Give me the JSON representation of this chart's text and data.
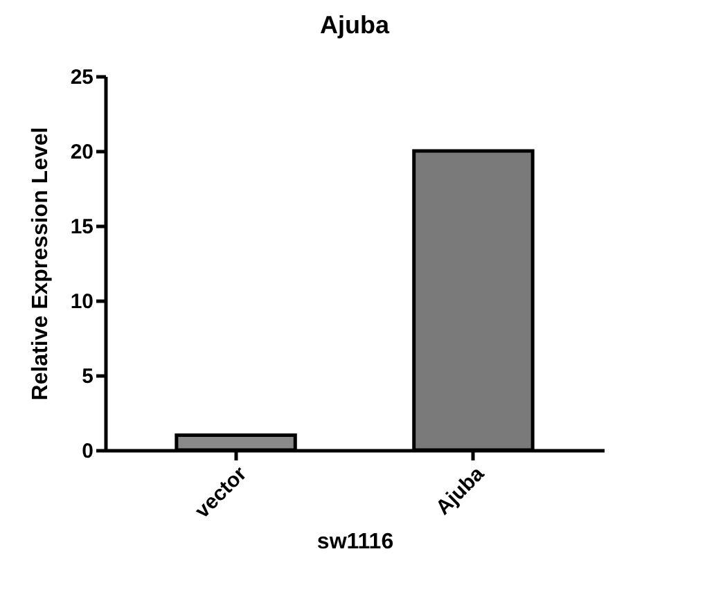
{
  "chart_data": {
    "type": "bar",
    "title": "Ajuba",
    "xlabel": "sw1116",
    "ylabel": "Relative Expression Level",
    "categories": [
      "vector",
      "Ajuba"
    ],
    "values": [
      1,
      20
    ],
    "colors": [
      "#8a8a8a",
      "#7a7a7a"
    ],
    "ylim": [
      0,
      25
    ],
    "yticks": [
      0,
      5,
      10,
      15,
      20,
      25
    ],
    "grid": false
  }
}
